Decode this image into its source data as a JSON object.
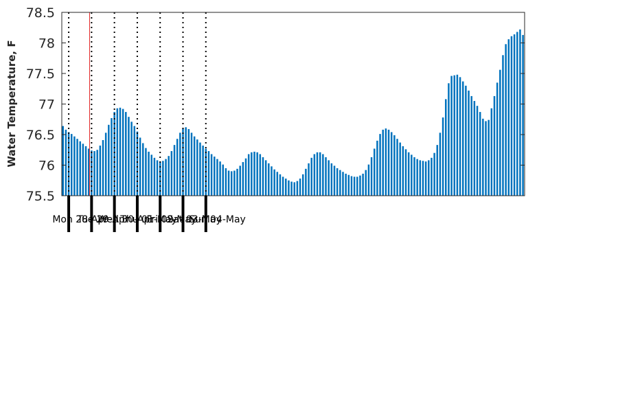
{
  "chart_data": {
    "type": "bar",
    "ylabel": "Water Temperature, F",
    "ylim": [
      75.5,
      78.5
    ],
    "yticks": [
      "75.5",
      "76",
      "76.5",
      "77",
      "77.5",
      "78",
      "78.5"
    ],
    "x_tick_interval_hours": 3,
    "day_labels": [
      "Mon 28-Apr",
      "Tue 29-Apr",
      "Wed 30-Apr",
      "Thu 01-May",
      "Fri 02-May",
      "Sat 03-May",
      "Sun 04-May"
    ],
    "current_time_marker": "Mon 28-Apr 21:00",
    "bar_color": "#0072bd",
    "marker_color": "#e02020",
    "values": [
      76.64,
      76.58,
      76.54,
      76.51,
      76.47,
      76.43,
      76.39,
      76.35,
      76.31,
      76.27,
      76.24,
      76.23,
      76.25,
      76.32,
      76.41,
      76.53,
      76.66,
      76.77,
      76.87,
      76.93,
      76.94,
      76.92,
      76.87,
      76.79,
      76.71,
      76.64,
      76.55,
      76.45,
      76.36,
      76.28,
      76.22,
      76.17,
      76.12,
      76.08,
      76.06,
      76.07,
      76.1,
      76.15,
      76.23,
      76.33,
      76.43,
      76.53,
      76.6,
      76.62,
      76.59,
      76.53,
      76.47,
      76.42,
      76.37,
      76.32,
      76.27,
      76.23,
      76.18,
      76.14,
      76.1,
      76.06,
      76.01,
      75.95,
      75.91,
      75.9,
      75.91,
      75.94,
      75.99,
      76.05,
      76.11,
      76.18,
      76.21,
      76.22,
      76.21,
      76.18,
      76.13,
      76.08,
      76.03,
      75.98,
      75.93,
      75.89,
      75.85,
      75.81,
      75.78,
      75.75,
      75.73,
      75.72,
      75.74,
      75.78,
      75.85,
      75.94,
      76.03,
      76.12,
      76.18,
      76.21,
      76.21,
      76.18,
      76.13,
      76.08,
      76.03,
      75.99,
      75.95,
      75.92,
      75.89,
      75.86,
      75.84,
      75.82,
      75.81,
      75.81,
      75.83,
      75.86,
      75.92,
      76.01,
      76.13,
      76.27,
      76.4,
      76.51,
      76.58,
      76.6,
      76.58,
      76.54,
      76.49,
      76.43,
      76.37,
      76.31,
      76.26,
      76.21,
      76.17,
      76.13,
      76.1,
      76.08,
      76.07,
      76.06,
      76.08,
      76.12,
      76.2,
      76.33,
      76.53,
      76.78,
      77.08,
      77.34,
      77.46,
      77.47,
      77.48,
      77.44,
      77.37,
      77.3,
      77.22,
      77.13,
      77.05,
      76.97,
      76.87,
      76.76,
      76.72,
      76.74,
      76.93,
      77.13,
      77.35,
      77.56,
      77.8,
      77.98,
      78.06,
      78.11,
      78.14,
      78.18,
      78.22,
      78.13
    ]
  }
}
